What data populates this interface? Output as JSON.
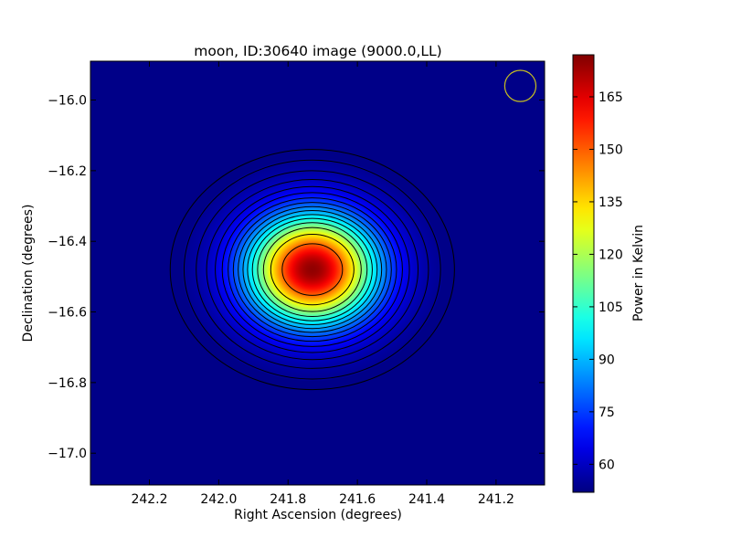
{
  "chart_data": {
    "type": "heatmap",
    "title": "moon, ID:30640 image (9000.0,LL)",
    "xlabel": "Right Ascension (degrees)",
    "ylabel": "Declination (degrees)",
    "x_reversed": true,
    "xlim": [
      242.37,
      241.06
    ],
    "ylim": [
      -17.09,
      -15.89
    ],
    "x_ticks": [
      {
        "value": 242.2,
        "label": "242.2"
      },
      {
        "value": 242.0,
        "label": "242.0"
      },
      {
        "value": 241.8,
        "label": "241.8"
      },
      {
        "value": 241.6,
        "label": "241.6"
      },
      {
        "value": 241.4,
        "label": "241.4"
      },
      {
        "value": 241.2,
        "label": "241.2"
      }
    ],
    "y_ticks": [
      {
        "value": -16.0,
        "label": "−16.0"
      },
      {
        "value": -16.2,
        "label": "−16.2"
      },
      {
        "value": -16.4,
        "label": "−16.4"
      },
      {
        "value": -16.6,
        "label": "−16.6"
      },
      {
        "value": -16.8,
        "label": "−16.8"
      },
      {
        "value": -17.0,
        "label": "−17.0"
      }
    ],
    "colormap": "jet",
    "background_value": 53,
    "source": {
      "ra": 241.73,
      "dec": -16.48,
      "peak": 175,
      "sigma_ra": 0.125,
      "sigma_dec": 0.105
    },
    "contours": [
      {
        "a": 0.41,
        "b": 0.34
      },
      {
        "a": 0.37,
        "b": 0.31
      },
      {
        "a": 0.335,
        "b": 0.28
      },
      {
        "a": 0.305,
        "b": 0.255
      },
      {
        "a": 0.28,
        "b": 0.235
      },
      {
        "a": 0.26,
        "b": 0.218
      },
      {
        "a": 0.243,
        "b": 0.203
      },
      {
        "a": 0.228,
        "b": 0.19
      },
      {
        "a": 0.214,
        "b": 0.178
      },
      {
        "a": 0.2,
        "b": 0.167
      },
      {
        "a": 0.187,
        "b": 0.156
      },
      {
        "a": 0.173,
        "b": 0.145
      },
      {
        "a": 0.158,
        "b": 0.133
      },
      {
        "a": 0.141,
        "b": 0.119
      },
      {
        "a": 0.12,
        "b": 0.1
      },
      {
        "a": 0.087,
        "b": 0.073
      }
    ],
    "beam": {
      "ra": 241.13,
      "dec": -15.96,
      "radius_deg": 0.045,
      "color": "#c8c020"
    },
    "colorbar": {
      "label": "Power in Kelvin",
      "min": 52,
      "max": 177,
      "ticks": [
        {
          "value": 60,
          "label": "60"
        },
        {
          "value": 75,
          "label": "75"
        },
        {
          "value": 90,
          "label": "90"
        },
        {
          "value": 105,
          "label": "105"
        },
        {
          "value": 120,
          "label": "120"
        },
        {
          "value": 135,
          "label": "135"
        },
        {
          "value": 150,
          "label": "150"
        },
        {
          "value": 165,
          "label": "165"
        }
      ]
    },
    "contour_color": "#000000",
    "grid": false,
    "legend": "none"
  }
}
